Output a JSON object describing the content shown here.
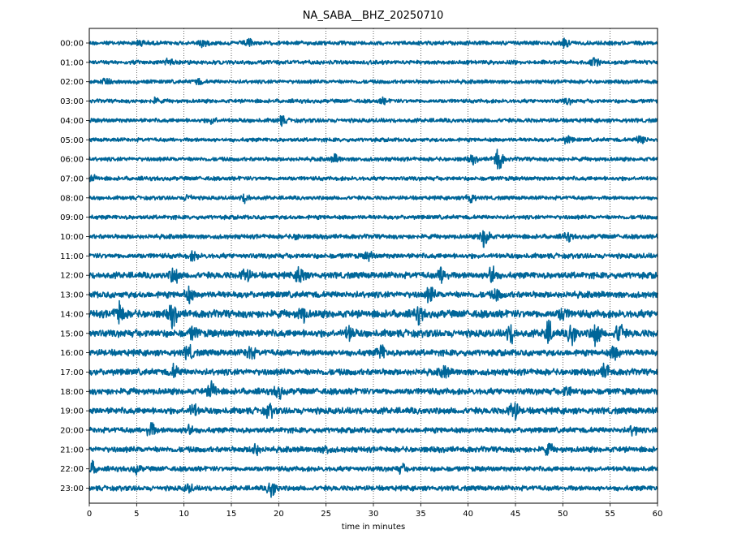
{
  "chart_data": {
    "type": "line",
    "title": "NA_SABA__BHZ_20250710",
    "xlabel": "time in minutes",
    "ylabel": "",
    "xlim": [
      0,
      60
    ],
    "x_ticks": [
      "0",
      "5",
      "10",
      "15",
      "20",
      "25",
      "30",
      "35",
      "40",
      "45",
      "50",
      "55",
      "60"
    ],
    "y_tick_labels": [
      "00:00",
      "01:00",
      "02:00",
      "03:00",
      "04:00",
      "05:00",
      "06:00",
      "07:00",
      "08:00",
      "09:00",
      "10:00",
      "11:00",
      "12:00",
      "13:00",
      "14:00",
      "15:00",
      "16:00",
      "17:00",
      "18:00",
      "19:00",
      "20:00",
      "21:00",
      "22:00",
      "23:00"
    ],
    "grid": "vertical dotted lines at every 5 minutes",
    "trace_color": "#006699",
    "series": [
      {
        "hour": "00:00",
        "noise": 0.18,
        "events": [
          {
            "t": 5.5,
            "a": 0.25
          },
          {
            "t": 12.0,
            "a": 0.3
          },
          {
            "t": 16.8,
            "a": 0.35
          },
          {
            "t": 50.3,
            "a": 0.3
          }
        ]
      },
      {
        "hour": "01:00",
        "noise": 0.18,
        "events": [
          {
            "t": 8.5,
            "a": 0.35
          },
          {
            "t": 53.5,
            "a": 0.4
          }
        ]
      },
      {
        "hour": "02:00",
        "noise": 0.17,
        "events": [
          {
            "t": 1.8,
            "a": 0.3
          },
          {
            "t": 11.5,
            "a": 0.2
          }
        ]
      },
      {
        "hour": "03:00",
        "noise": 0.17,
        "events": [
          {
            "t": 7.0,
            "a": 0.2
          },
          {
            "t": 31.0,
            "a": 0.2
          },
          {
            "t": 50.5,
            "a": 0.2
          }
        ]
      },
      {
        "hour": "04:00",
        "noise": 0.18,
        "events": [
          {
            "t": 20.3,
            "a": 0.35
          },
          {
            "t": 13.0,
            "a": 0.25
          }
        ]
      },
      {
        "hour": "05:00",
        "noise": 0.17,
        "events": [
          {
            "t": 50.5,
            "a": 0.3
          },
          {
            "t": 58.3,
            "a": 0.45
          }
        ]
      },
      {
        "hour": "06:00",
        "noise": 0.18,
        "events": [
          {
            "t": 26.0,
            "a": 0.3
          },
          {
            "t": 43.2,
            "a": 1.0
          },
          {
            "t": 40.5,
            "a": 0.3
          }
        ]
      },
      {
        "hour": "07:00",
        "noise": 0.18,
        "events": [
          {
            "t": 0.5,
            "a": 0.2
          }
        ]
      },
      {
        "hour": "08:00",
        "noise": 0.17,
        "events": [
          {
            "t": 10.5,
            "a": 0.25
          },
          {
            "t": 16.5,
            "a": 0.35
          },
          {
            "t": 40.2,
            "a": 0.45
          }
        ]
      },
      {
        "hour": "09:00",
        "noise": 0.18,
        "events": []
      },
      {
        "hour": "10:00",
        "noise": 0.2,
        "events": [
          {
            "t": 41.8,
            "a": 1.1
          },
          {
            "t": 50.5,
            "a": 0.3
          },
          {
            "t": 22.0,
            "a": 0.2
          }
        ]
      },
      {
        "hour": "11:00",
        "noise": 0.22,
        "events": [
          {
            "t": 11.0,
            "a": 0.35
          },
          {
            "t": 29.5,
            "a": 0.3
          }
        ]
      },
      {
        "hour": "12:00",
        "noise": 0.28,
        "events": [
          {
            "t": 9.0,
            "a": 0.7
          },
          {
            "t": 16.5,
            "a": 0.6
          },
          {
            "t": 22.3,
            "a": 0.8
          },
          {
            "t": 37.3,
            "a": 0.7
          },
          {
            "t": 42.5,
            "a": 0.9
          }
        ]
      },
      {
        "hour": "13:00",
        "noise": 0.28,
        "events": [
          {
            "t": 10.5,
            "a": 0.6
          },
          {
            "t": 36.0,
            "a": 0.6
          },
          {
            "t": 43.0,
            "a": 0.4
          }
        ]
      },
      {
        "hour": "14:00",
        "noise": 0.34,
        "events": [
          {
            "t": 3.2,
            "a": 0.9
          },
          {
            "t": 8.8,
            "a": 0.9
          },
          {
            "t": 22.5,
            "a": 0.6
          },
          {
            "t": 34.8,
            "a": 0.6
          },
          {
            "t": 50.0,
            "a": 0.5
          }
        ]
      },
      {
        "hour": "15:00",
        "noise": 0.32,
        "events": [
          {
            "t": 11.0,
            "a": 0.5
          },
          {
            "t": 27.5,
            "a": 0.6
          },
          {
            "t": 44.5,
            "a": 0.7
          },
          {
            "t": 48.5,
            "a": 0.9
          },
          {
            "t": 51.0,
            "a": 1.0
          },
          {
            "t": 53.5,
            "a": 1.0
          },
          {
            "t": 56.0,
            "a": 0.9
          }
        ]
      },
      {
        "hour": "16:00",
        "noise": 0.28,
        "events": [
          {
            "t": 10.5,
            "a": 0.6
          },
          {
            "t": 17.0,
            "a": 0.6
          },
          {
            "t": 30.8,
            "a": 0.6
          },
          {
            "t": 55.5,
            "a": 0.6
          }
        ]
      },
      {
        "hour": "17:00",
        "noise": 0.28,
        "events": [
          {
            "t": 9.0,
            "a": 0.5
          },
          {
            "t": 37.5,
            "a": 0.5
          },
          {
            "t": 54.5,
            "a": 0.6
          }
        ]
      },
      {
        "hour": "18:00",
        "noise": 0.28,
        "events": [
          {
            "t": 13.0,
            "a": 0.8
          },
          {
            "t": 20.0,
            "a": 0.5
          },
          {
            "t": 50.5,
            "a": 0.4
          }
        ]
      },
      {
        "hour": "19:00",
        "noise": 0.28,
        "events": [
          {
            "t": 11.0,
            "a": 0.5
          },
          {
            "t": 19.0,
            "a": 0.5
          },
          {
            "t": 44.8,
            "a": 0.9
          }
        ]
      },
      {
        "hour": "20:00",
        "noise": 0.24,
        "events": [
          {
            "t": 6.5,
            "a": 0.6
          },
          {
            "t": 10.5,
            "a": 0.5
          },
          {
            "t": 57.5,
            "a": 0.4
          }
        ]
      },
      {
        "hour": "21:00",
        "noise": 0.25,
        "events": [
          {
            "t": 17.5,
            "a": 0.5
          },
          {
            "t": 48.5,
            "a": 0.4
          },
          {
            "t": 25.0,
            "a": 0.3
          }
        ]
      },
      {
        "hour": "22:00",
        "noise": 0.22,
        "events": [
          {
            "t": 0.3,
            "a": 0.5
          },
          {
            "t": 5.0,
            "a": 0.3
          },
          {
            "t": 33.0,
            "a": 0.3
          }
        ]
      },
      {
        "hour": "23:00",
        "noise": 0.22,
        "events": [
          {
            "t": 19.3,
            "a": 0.8
          },
          {
            "t": 10.5,
            "a": 0.3
          }
        ]
      }
    ]
  }
}
